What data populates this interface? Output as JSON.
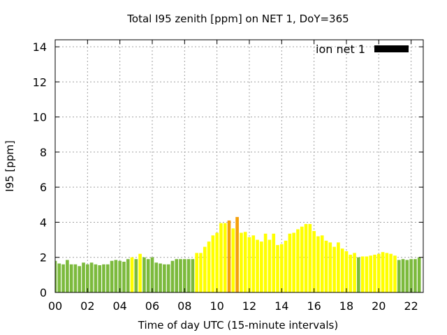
{
  "chart_data": {
    "type": "bar",
    "title": "Total I95 zenith [ppm] on NET 1, DoY=365",
    "xlabel": "Time of day UTC (15-minute intervals)",
    "ylabel": "I95 [ppm]",
    "ylim": [
      0,
      14.4
    ],
    "yticks": [
      0,
      2,
      4,
      6,
      8,
      10,
      12,
      14
    ],
    "xlim": [
      0,
      22.75
    ],
    "xticks": [
      0,
      2,
      4,
      6,
      8,
      10,
      12,
      14,
      16,
      18,
      20,
      22
    ],
    "xtick_labels": [
      "00",
      "02",
      "04",
      "06",
      "08",
      "10",
      "12",
      "14",
      "16",
      "18",
      "20",
      "22"
    ],
    "grid": true,
    "legend": {
      "label": "ion net 1",
      "color": "#000000",
      "position": "top-right"
    },
    "bar_step_hours": 0.25,
    "series": [
      {
        "name": "ion net 1",
        "values": [
          1.8,
          1.65,
          1.6,
          1.85,
          1.6,
          1.6,
          1.5,
          1.7,
          1.6,
          1.7,
          1.6,
          1.55,
          1.6,
          1.6,
          1.8,
          1.85,
          1.8,
          1.75,
          1.9,
          2.0,
          1.9,
          2.2,
          2.0,
          1.9,
          2.0,
          1.7,
          1.65,
          1.6,
          1.6,
          1.8,
          1.9,
          1.9,
          1.9,
          1.9,
          1.9,
          2.25,
          2.25,
          2.6,
          2.9,
          3.25,
          3.4,
          3.95,
          3.95,
          4.1,
          3.65,
          4.3,
          3.4,
          3.45,
          3.15,
          3.25,
          3.0,
          2.9,
          3.35,
          3.0,
          3.35,
          2.7,
          2.75,
          2.95,
          3.35,
          3.4,
          3.6,
          3.75,
          3.9,
          3.9,
          3.5,
          3.2,
          3.25,
          2.95,
          2.85,
          2.6,
          2.85,
          2.5,
          2.35,
          2.15,
          2.25,
          2.0,
          2.05,
          2.05,
          2.1,
          2.15,
          2.2,
          2.3,
          2.25,
          2.2,
          2.1,
          1.85,
          1.9,
          1.85,
          1.9,
          1.9,
          2.0
        ]
      }
    ],
    "bar_colors": {
      "green": "#7cba3d",
      "yellow": "#ffff00",
      "orange": "#f5a00a"
    },
    "bar_color_keys": [
      "green",
      "green",
      "green",
      "green",
      "green",
      "green",
      "green",
      "green",
      "green",
      "green",
      "green",
      "green",
      "green",
      "green",
      "green",
      "green",
      "green",
      "green",
      "green",
      "yellow",
      "green",
      "yellow",
      "green",
      "green",
      "green",
      "green",
      "green",
      "green",
      "green",
      "green",
      "green",
      "green",
      "green",
      "green",
      "green",
      "yellow",
      "yellow",
      "yellow",
      "yellow",
      "yellow",
      "yellow",
      "yellow",
      "yellow",
      "orange",
      "yellow",
      "orange",
      "yellow",
      "yellow",
      "yellow",
      "yellow",
      "yellow",
      "yellow",
      "yellow",
      "yellow",
      "yellow",
      "yellow",
      "yellow",
      "yellow",
      "yellow",
      "yellow",
      "yellow",
      "yellow",
      "yellow",
      "yellow",
      "yellow",
      "yellow",
      "yellow",
      "yellow",
      "yellow",
      "yellow",
      "yellow",
      "yellow",
      "yellow",
      "yellow",
      "yellow",
      "green",
      "yellow",
      "yellow",
      "yellow",
      "yellow",
      "yellow",
      "yellow",
      "yellow",
      "yellow",
      "yellow",
      "green",
      "green",
      "green",
      "green",
      "green",
      "green"
    ]
  }
}
